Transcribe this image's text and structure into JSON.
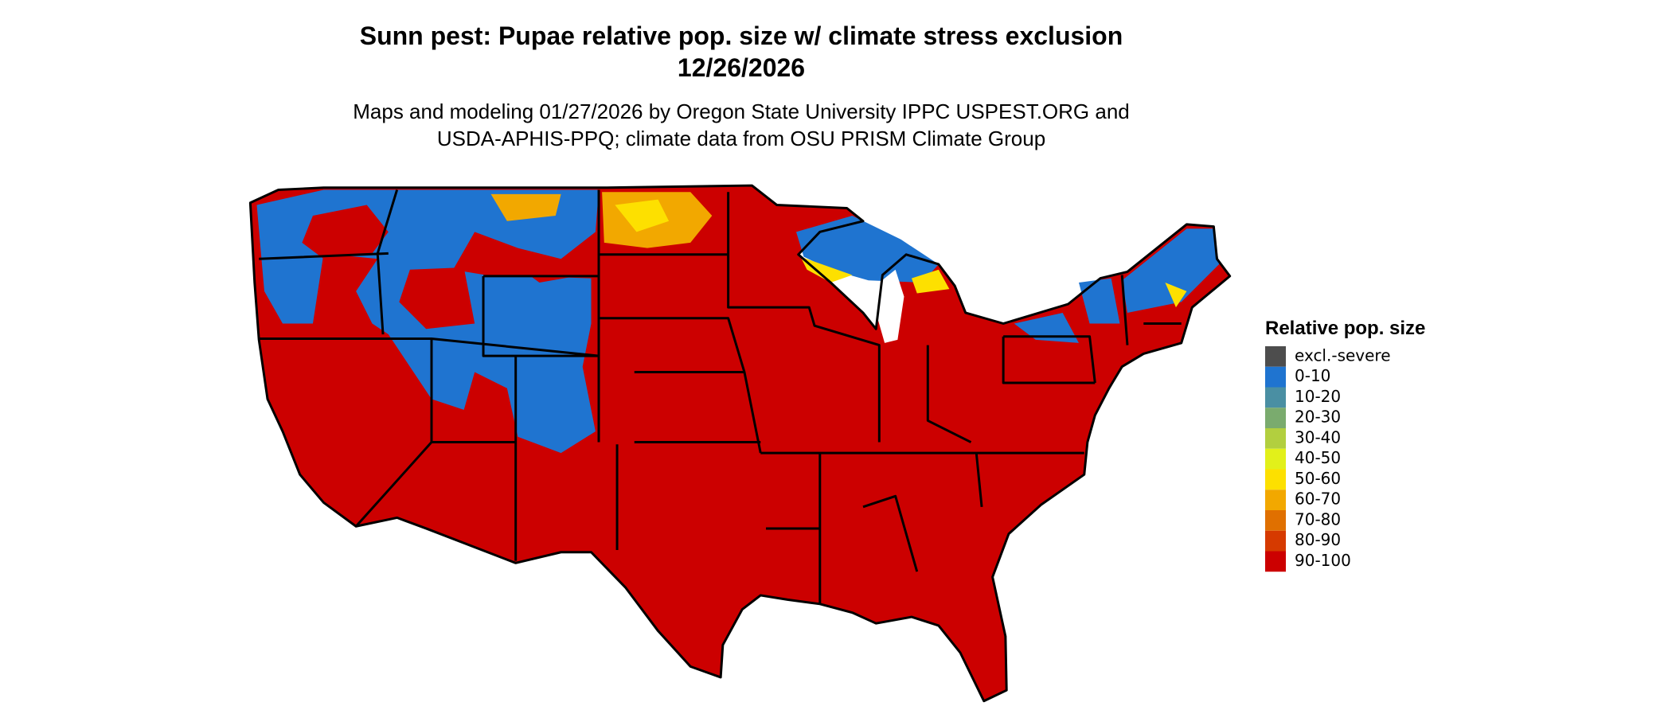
{
  "title": "Sunn pest: Pupae relative pop. size w/ climate stress exclusion",
  "date": "12/26/2026",
  "subtitle": [
    "Maps and modeling 01/27/2026 by Oregon State University IPPC USPEST.ORG and",
    "USDA-APHIS-PPQ; climate data from OSU PRISM Climate Group"
  ],
  "legend": {
    "title": "Relative pop. size",
    "items": [
      {
        "label": "excl.-severe",
        "color": "#4d4d4d"
      },
      {
        "label": "0-10",
        "color": "#1f74d0"
      },
      {
        "label": "10-20",
        "color": "#4a8fa3"
      },
      {
        "label": "20-30",
        "color": "#7aab6e"
      },
      {
        "label": "30-40",
        "color": "#b2cf3f"
      },
      {
        "label": "40-50",
        "color": "#e2f01a"
      },
      {
        "label": "50-60",
        "color": "#fde000"
      },
      {
        "label": "60-70",
        "color": "#f2a800"
      },
      {
        "label": "70-80",
        "color": "#e07000"
      },
      {
        "label": "80-90",
        "color": "#d63a00"
      },
      {
        "label": "90-100",
        "color": "#cc0000"
      }
    ]
  }
}
